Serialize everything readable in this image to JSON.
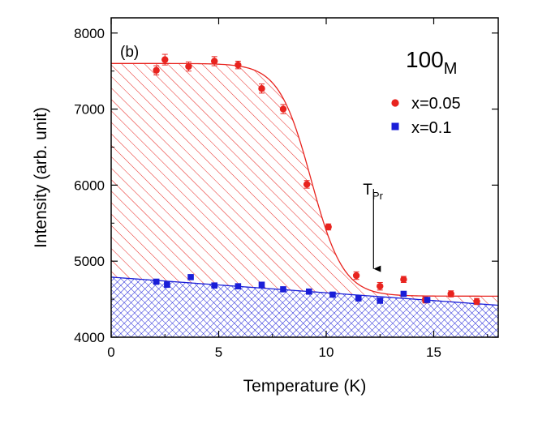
{
  "chart_data": {
    "type": "scatter",
    "panel_label": "(b)",
    "sample_label": {
      "main": "100",
      "sub": "M"
    },
    "xlabel": "Temperature (K)",
    "ylabel": "Intensity (arb. unit)",
    "xlim": [
      0,
      18
    ],
    "ylim": [
      4000,
      8200
    ],
    "xticks": [
      0,
      5,
      10,
      15
    ],
    "yticks": [
      4000,
      5000,
      6000,
      7000,
      8000
    ],
    "annotation": {
      "text": "T",
      "sub": "Pr",
      "x": 12.2,
      "y_arrow_top": 5950,
      "y_arrow_tip": 4900
    },
    "series": [
      {
        "name": "x=0.05",
        "color": "#e8231e",
        "marker": "circle",
        "x": [
          2.1,
          2.5,
          3.6,
          4.8,
          5.9,
          7.0,
          8.0,
          9.1,
          10.1,
          11.4,
          12.5,
          13.6,
          14.6,
          15.8,
          17.0
        ],
        "y": [
          7510,
          7650,
          7560,
          7630,
          7580,
          7270,
          7000,
          6010,
          5450,
          4810,
          4670,
          4760,
          4490,
          4570,
          4470
        ],
        "err": [
          60,
          70,
          60,
          60,
          50,
          60,
          60,
          50,
          40,
          50,
          50,
          40,
          40,
          40,
          40
        ],
        "fit": {
          "model": "sigmoid",
          "high": 7600,
          "low": 4540,
          "t0": 9.3,
          "width": 0.75
        },
        "fill": "hatched-red"
      },
      {
        "name": "x=0.1",
        "color": "#1a1ed8",
        "marker": "square",
        "x": [
          2.1,
          2.6,
          3.7,
          4.8,
          5.9,
          7.0,
          8.0,
          9.2,
          10.3,
          11.5,
          12.5,
          13.6,
          14.7
        ],
        "y": [
          4730,
          4690,
          4790,
          4680,
          4670,
          4690,
          4630,
          4600,
          4560,
          4510,
          4480,
          4570,
          4490
        ],
        "fit": {
          "model": "linear",
          "y_at_0": 4790,
          "y_at_18": 4420
        },
        "fill": "crosshatched-blue"
      }
    ]
  }
}
